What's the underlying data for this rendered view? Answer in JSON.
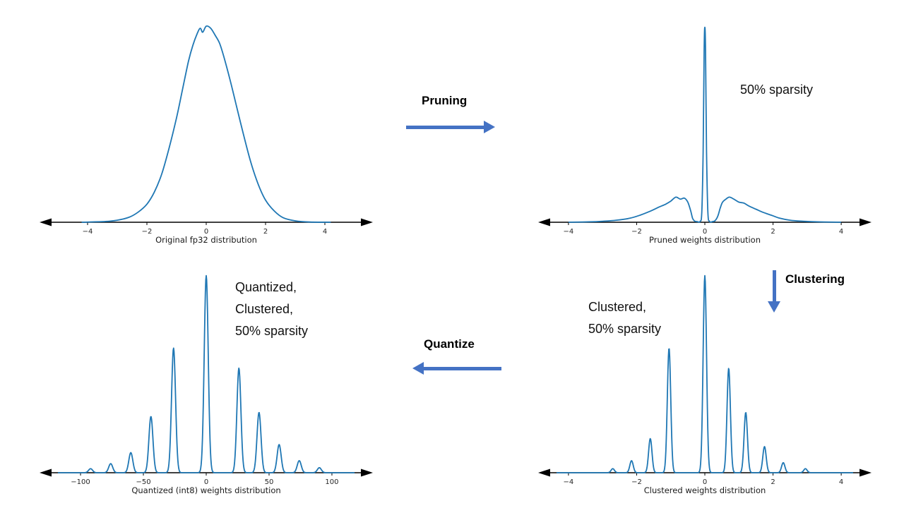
{
  "colors": {
    "accent": "#4472c4",
    "curve": "#1f77b4",
    "axis": "#000000",
    "tick_text": "#262626",
    "title_text": "#1a1a1a"
  },
  "flow": {
    "pruning_label": "Pruning",
    "clustering_label": "Clustering",
    "quantize_label": "Quantize"
  },
  "chart_data": [
    {
      "type": "line",
      "title": "Original fp32 distribution",
      "xlabel": "Original fp32 distribution",
      "ylabel": "",
      "xrange": [
        -5,
        5
      ],
      "xticks": [
        -4,
        -2,
        0,
        2,
        4
      ],
      "ylim": [
        0,
        1
      ],
      "grid": false,
      "legend": false,
      "curve": {
        "points": [
          [
            -4.2,
            0.0
          ],
          [
            -3.4,
            0.004
          ],
          [
            -3.0,
            0.01
          ],
          [
            -2.6,
            0.025
          ],
          [
            -2.3,
            0.05
          ],
          [
            -2.0,
            0.09
          ],
          [
            -1.75,
            0.15
          ],
          [
            -1.5,
            0.24
          ],
          [
            -1.25,
            0.37
          ],
          [
            -1.0,
            0.52
          ],
          [
            -0.8,
            0.66
          ],
          [
            -0.6,
            0.8
          ],
          [
            -0.45,
            0.88
          ],
          [
            -0.3,
            0.94
          ],
          [
            -0.2,
            0.965
          ],
          [
            -0.12,
            0.945
          ],
          [
            0.0,
            0.975
          ],
          [
            0.15,
            0.965
          ],
          [
            0.3,
            0.93
          ],
          [
            0.45,
            0.89
          ],
          [
            0.6,
            0.82
          ],
          [
            0.8,
            0.71
          ],
          [
            1.0,
            0.59
          ],
          [
            1.25,
            0.44
          ],
          [
            1.5,
            0.3
          ],
          [
            1.75,
            0.19
          ],
          [
            2.0,
            0.11
          ],
          [
            2.3,
            0.055
          ],
          [
            2.6,
            0.022
          ],
          [
            3.0,
            0.007
          ],
          [
            3.5,
            0.001
          ],
          [
            4.2,
            0.0
          ]
        ]
      }
    },
    {
      "type": "line",
      "title": "Pruned weights distribution",
      "xlabel": "Pruned weights distribution",
      "ylabel": "",
      "xrange": [
        -4.35,
        4.35
      ],
      "xticks": [
        -4,
        -2,
        0,
        2,
        4
      ],
      "ylim": [
        0,
        1
      ],
      "grid": false,
      "legend": false,
      "annotation": "50% sparsity",
      "curve": {
        "points": [
          [
            -4.0,
            0.0
          ],
          [
            -3.4,
            0.002
          ],
          [
            -3.0,
            0.005
          ],
          [
            -2.6,
            0.01
          ],
          [
            -2.2,
            0.02
          ],
          [
            -1.9,
            0.035
          ],
          [
            -1.6,
            0.055
          ],
          [
            -1.35,
            0.075
          ],
          [
            -1.15,
            0.09
          ],
          [
            -1.0,
            0.105
          ],
          [
            -0.85,
            0.125
          ],
          [
            -0.72,
            0.115
          ],
          [
            -0.6,
            0.12
          ],
          [
            -0.5,
            0.1
          ],
          [
            -0.42,
            0.06
          ],
          [
            -0.36,
            0.02
          ],
          [
            -0.3,
            0.006
          ],
          [
            -0.22,
            0.003
          ],
          [
            -0.14,
            0.004
          ],
          [
            -0.09,
            0.05
          ],
          [
            -0.05,
            0.35
          ],
          [
            -0.02,
            0.85
          ],
          [
            0.0,
            0.97
          ],
          [
            0.02,
            0.85
          ],
          [
            0.05,
            0.35
          ],
          [
            0.09,
            0.05
          ],
          [
            0.14,
            0.004
          ],
          [
            0.22,
            0.003
          ],
          [
            0.3,
            0.008
          ],
          [
            0.38,
            0.03
          ],
          [
            0.45,
            0.07
          ],
          [
            0.52,
            0.1
          ],
          [
            0.62,
            0.115
          ],
          [
            0.72,
            0.125
          ],
          [
            0.85,
            0.115
          ],
          [
            1.0,
            0.1
          ],
          [
            1.15,
            0.095
          ],
          [
            1.3,
            0.08
          ],
          [
            1.5,
            0.065
          ],
          [
            1.7,
            0.05
          ],
          [
            1.95,
            0.035
          ],
          [
            2.2,
            0.02
          ],
          [
            2.5,
            0.01
          ],
          [
            2.9,
            0.005
          ],
          [
            3.3,
            0.002
          ],
          [
            4.0,
            0.0
          ]
        ]
      }
    },
    {
      "type": "line",
      "title": "Clustered weights distribution",
      "xlabel": "Clustered weights distribution",
      "ylabel": "",
      "xrange": [
        -4.35,
        4.35
      ],
      "xticks": [
        -4,
        -2,
        0,
        2,
        4
      ],
      "ylim": [
        0,
        1
      ],
      "grid": false,
      "legend": false,
      "annotation_lines": [
        "Clustered,",
        "50% sparsity"
      ],
      "curve": {
        "spikes": [
          [
            -2.7,
            0.02
          ],
          [
            -2.15,
            0.06
          ],
          [
            -1.6,
            0.17
          ],
          [
            -1.05,
            0.62
          ],
          [
            0.0,
            0.98
          ],
          [
            0.7,
            0.52
          ],
          [
            1.2,
            0.3
          ],
          [
            1.75,
            0.13
          ],
          [
            2.3,
            0.05
          ],
          [
            2.95,
            0.02
          ]
        ],
        "sigma": 0.05
      }
    },
    {
      "type": "line",
      "title": "Quantized (int8) weights distribution",
      "xlabel": "Quantized (int8) weights distribution",
      "ylabel": "",
      "xrange": [
        -118,
        118
      ],
      "xticks": [
        -100,
        -50,
        0,
        50,
        100
      ],
      "ylim": [
        0,
        1
      ],
      "grid": false,
      "legend": false,
      "annotation_lines": [
        "Quantized,",
        "Clustered,",
        "50% sparsity"
      ],
      "curve": {
        "spikes": [
          [
            -92,
            0.02
          ],
          [
            -76,
            0.045
          ],
          [
            -60,
            0.1
          ],
          [
            -44,
            0.28
          ],
          [
            -26,
            0.62
          ],
          [
            0,
            0.98
          ],
          [
            26,
            0.52
          ],
          [
            42,
            0.3
          ],
          [
            58,
            0.14
          ],
          [
            74,
            0.06
          ],
          [
            90,
            0.025
          ]
        ],
        "sigma": 1.6
      }
    }
  ]
}
